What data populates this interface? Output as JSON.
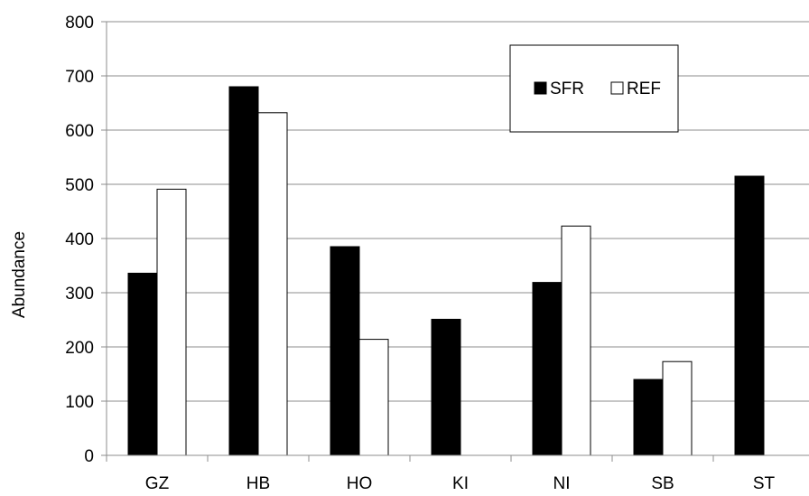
{
  "chart_data": {
    "type": "bar",
    "categories": [
      "GZ",
      "HB",
      "HO",
      "KI",
      "NI",
      "SB",
      "ST"
    ],
    "series": [
      {
        "name": "SFR",
        "color": "#000000",
        "values": [
          336,
          680,
          385,
          251,
          319,
          140,
          515
        ]
      },
      {
        "name": "REF",
        "color": "#ffffff",
        "values": [
          491,
          632,
          214,
          null,
          423,
          173,
          null
        ]
      }
    ],
    "title": "",
    "xlabel": "",
    "ylabel": "Abundance",
    "ylim": [
      0,
      800
    ],
    "yticks": [
      0,
      100,
      200,
      300,
      400,
      500,
      600,
      700,
      800
    ],
    "grid": true,
    "legend_position": "top-right"
  }
}
